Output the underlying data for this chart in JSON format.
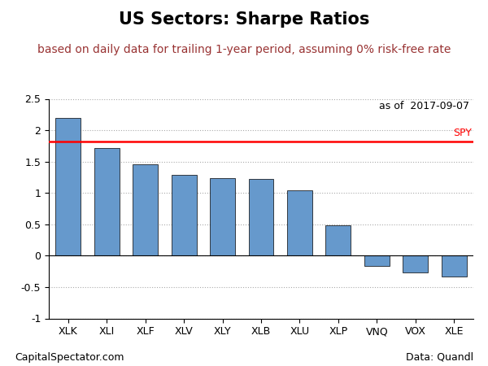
{
  "title": "US Sectors: Sharpe Ratios",
  "subtitle": "based on daily data for trailing 1-year period, assuming 0% risk-free rate",
  "as_of_text": "as of  2017-09-07",
  "categories": [
    "XLK",
    "XLI",
    "XLF",
    "XLV",
    "XLY",
    "XLB",
    "XLU",
    "XLP",
    "VNQ",
    "VOX",
    "XLE"
  ],
  "values": [
    2.2,
    1.72,
    1.46,
    1.29,
    1.23,
    1.22,
    1.04,
    0.48,
    -0.17,
    -0.27,
    -0.33
  ],
  "spy_level": 1.82,
  "bar_color": "#6699CC",
  "bar_edge_color": "#000000",
  "spy_color": "#FF0000",
  "spy_label": "SPY",
  "ylim": [
    -1.0,
    2.5
  ],
  "yticks": [
    -1.0,
    -0.5,
    0.0,
    0.5,
    1.0,
    1.5,
    2.0,
    2.5
  ],
  "grid_color": "#AAAAAA",
  "grid_linestyle": ":",
  "title_fontsize": 15,
  "subtitle_fontsize": 10,
  "subtitle_color": "#993333",
  "tick_fontsize": 9,
  "footer_left": "CapitalSpectator.com",
  "footer_right": "Data: Quandl",
  "footer_fontsize": 9,
  "as_of_fontsize": 9,
  "background_color": "#FFFFFF"
}
